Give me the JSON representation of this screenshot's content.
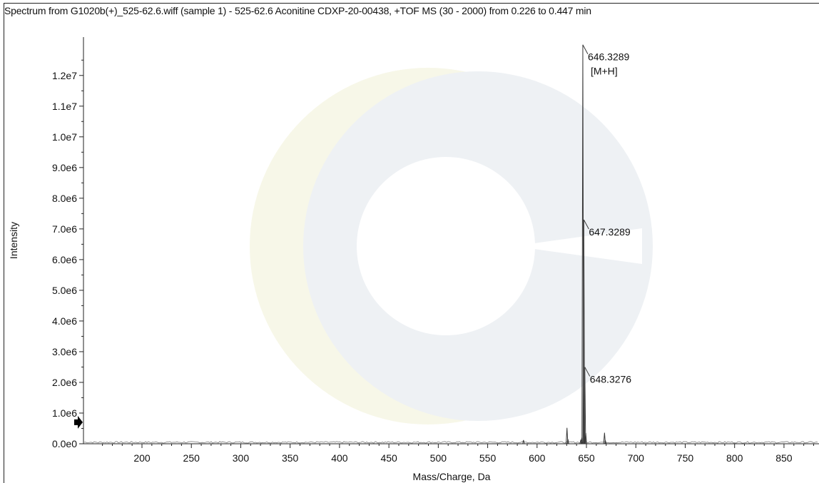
{
  "chart_data": {
    "type": "line",
    "title": "Spectrum from G1020b(+)_525-62.6.wiff (sample 1) - 525-62.6 Aconitine CDXP-20-00438, +TOF MS (30 - 2000) from 0.226 to 0.447 min",
    "xlabel": "Mass/Charge, Da",
    "ylabel": "Intensity",
    "xlim": [
      140,
      885
    ],
    "ylim": [
      0,
      13000000
    ],
    "x_ticks": [
      200,
      250,
      300,
      350,
      400,
      450,
      500,
      550,
      600,
      650,
      700,
      750,
      800,
      850
    ],
    "x_tick_labels": [
      "200",
      "250",
      "300",
      "350",
      "400",
      "450",
      "500",
      "550",
      "600",
      "650",
      "700",
      "750",
      "800",
      "850"
    ],
    "y_ticks": [
      0,
      1000000,
      2000000,
      3000000,
      4000000,
      5000000,
      6000000,
      7000000,
      8000000,
      9000000,
      10000000,
      11000000,
      12000000
    ],
    "y_tick_labels": [
      "0.0e0",
      "1.0e6",
      "2.0e6",
      "3.0e6",
      "4.0e6",
      "5.0e6",
      "6.0e6",
      "7.0e6",
      "8.0e6",
      "9.0e6",
      "1.0e7",
      "1.1e7",
      "1.2e7"
    ],
    "grid": false,
    "series": [
      {
        "peaks": [
          {
            "mz": 586.3,
            "intensity": 120000
          },
          {
            "mz": 630.3,
            "intensity": 520000
          },
          {
            "mz": 631.3,
            "intensity": 150000
          },
          {
            "mz": 644.3,
            "intensity": 130000
          },
          {
            "mz": 645.3,
            "intensity": 200000
          },
          {
            "mz": 646.3289,
            "intensity": 13000000
          },
          {
            "mz": 647.3289,
            "intensity": 7300000
          },
          {
            "mz": 648.3276,
            "intensity": 2500000
          },
          {
            "mz": 649.3,
            "intensity": 350000
          },
          {
            "mz": 668.3,
            "intensity": 360000
          },
          {
            "mz": 669.3,
            "intensity": 90000
          }
        ]
      }
    ],
    "annotations": [
      {
        "mz": 646.3289,
        "lines": [
          "646.3289",
          "[M+H]"
        ]
      },
      {
        "mz": 647.3289,
        "lines": [
          "647.3289"
        ]
      },
      {
        "mz": 648.3276,
        "lines": [
          "648.3276"
        ]
      }
    ],
    "marker": {
      "type": "arrow",
      "side": "left",
      "intensity": 700000,
      "color": "#000000"
    },
    "colors": {
      "trace": "#3a3a3a",
      "axis": "#222222",
      "text": "#111111"
    }
  }
}
